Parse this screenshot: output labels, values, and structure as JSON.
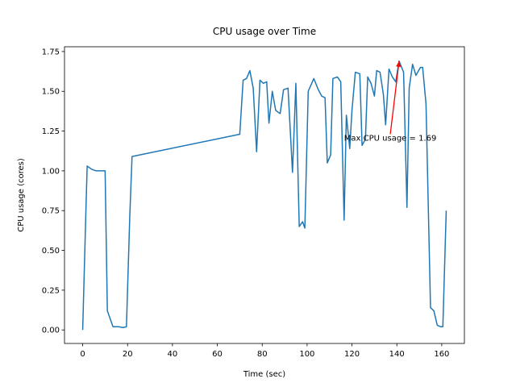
{
  "chart_data": {
    "type": "line",
    "title": "CPU usage over Time",
    "xlabel": "Time (sec)",
    "ylabel": "CPU usage (cores)",
    "color": "#1f77b4",
    "x": [
      0,
      1.5,
      2,
      4,
      6,
      8,
      10,
      11,
      13.5,
      16,
      18,
      19.5,
      21,
      22,
      70,
      71.5,
      73,
      74.5,
      76,
      77.5,
      79,
      80.5,
      82,
      83,
      84.5,
      86,
      88,
      89.5,
      91.5,
      93.5,
      95,
      96.5,
      98,
      99,
      100.5,
      103,
      105,
      106.5,
      108,
      109,
      110.5,
      111.5,
      113.5,
      115,
      116.5,
      117.5,
      119,
      120,
      121.5,
      123.5,
      124.5,
      126,
      127,
      128.5,
      130,
      131,
      132.5,
      134,
      135,
      136.5,
      138,
      139.5,
      141,
      143,
      144.5,
      145.5,
      147,
      148.5,
      150.5,
      151.5,
      153,
      155,
      156.5,
      158,
      159.5,
      160.5,
      162
    ],
    "values": [
      0,
      0.78,
      1.03,
      1.01,
      1.0,
      1.0,
      1.0,
      0.12,
      0.02,
      0.02,
      0.015,
      0.02,
      0.72,
      1.09,
      1.23,
      1.57,
      1.58,
      1.63,
      1.52,
      1.12,
      1.57,
      1.55,
      1.56,
      1.3,
      1.5,
      1.38,
      1.36,
      1.51,
      1.52,
      0.99,
      1.55,
      0.65,
      0.68,
      0.64,
      1.5,
      1.58,
      1.51,
      1.47,
      1.46,
      1.05,
      1.1,
      1.58,
      1.59,
      1.56,
      0.69,
      1.35,
      1.14,
      1.38,
      1.62,
      1.61,
      1.16,
      1.2,
      1.59,
      1.55,
      1.47,
      1.63,
      1.62,
      1.48,
      1.29,
      1.64,
      1.59,
      1.56,
      1.69,
      1.62,
      0.77,
      1.52,
      1.67,
      1.6,
      1.65,
      1.65,
      1.42,
      0.14,
      0.12,
      0.03,
      0.02,
      0.02,
      0.75
    ],
    "xlim": [
      -8.1,
      170.1
    ],
    "ylim": [
      -0.085,
      1.78
    ],
    "xticks": [
      0,
      20,
      40,
      60,
      80,
      100,
      120,
      140,
      160
    ],
    "yticks": [
      {
        "value": 0,
        "label": "0.00"
      },
      {
        "value": 0.25,
        "label": "0.25"
      },
      {
        "value": 0.5,
        "label": "0.50"
      },
      {
        "value": 0.75,
        "label": "0.75"
      },
      {
        "value": 1,
        "label": "1.00"
      },
      {
        "value": 1.25,
        "label": "1.25"
      },
      {
        "value": 1.5,
        "label": "1.50"
      },
      {
        "value": 1.75,
        "label": "1.75"
      }
    ],
    "annotations": [
      {
        "text": "Max CPU usage = 1.69",
        "xy": [
          141,
          1.69
        ],
        "xytext": [
          116.5,
          1.21
        ],
        "color": "red"
      }
    ]
  }
}
